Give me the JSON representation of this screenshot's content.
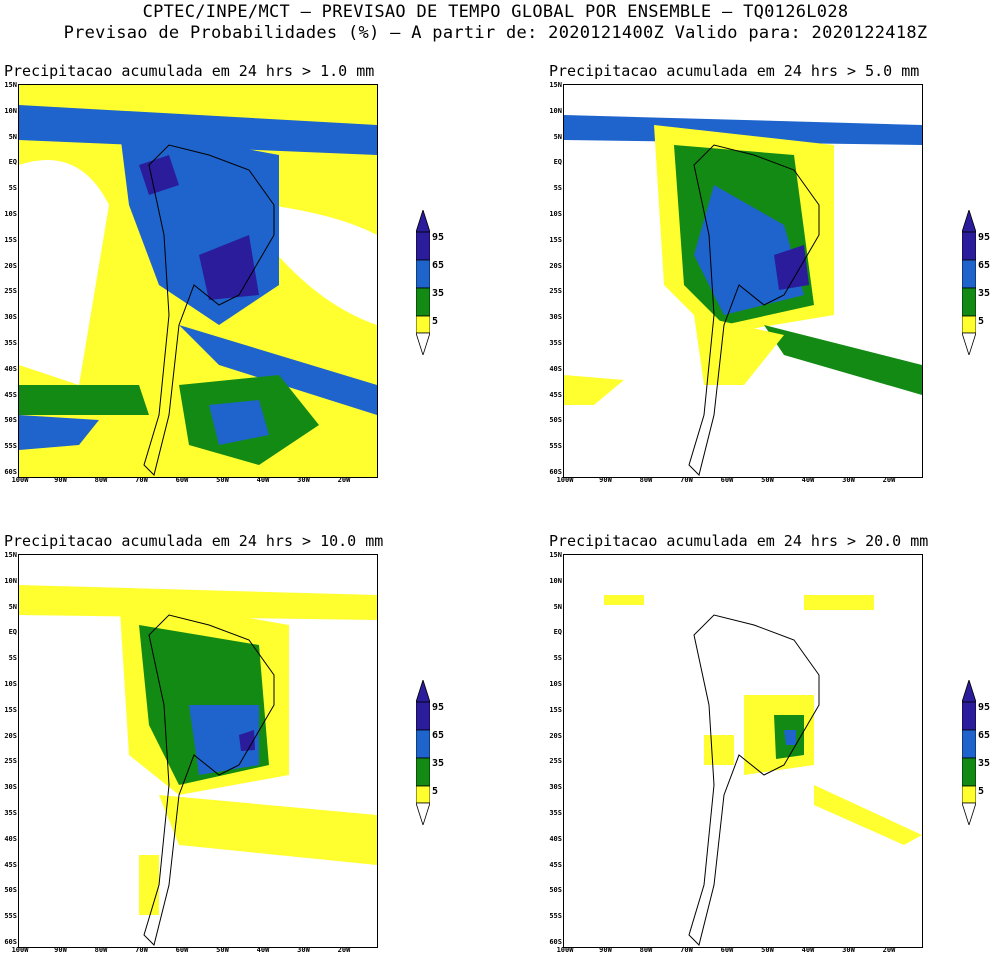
{
  "header": {
    "line1": "CPTEC/INPE/MCT – PREVISAO DE TEMPO GLOBAL POR ENSEMBLE – TQ0126L028",
    "line2": "Previsao de Probabilidades (%) –   A partir de: 2020121400Z  Valido para: 2020122418Z"
  },
  "axes": {
    "lat_labels": [
      "15N",
      "10N",
      "5N",
      "EQ",
      "5S",
      "10S",
      "15S",
      "20S",
      "25S",
      "30S",
      "35S",
      "40S",
      "45S",
      "50S",
      "55S",
      "60S"
    ],
    "lon_labels": [
      "100W",
      "90W",
      "80W",
      "70W",
      "60W",
      "50W",
      "40W",
      "30W",
      "20W"
    ]
  },
  "legend": {
    "levels": [
      "95",
      "65",
      "35",
      "5"
    ],
    "colors": {
      "p95": "#2a1c9a",
      "p65": "#1e64cc",
      "p35": "#138a13",
      "p5": "#ffff30",
      "none": "#ffffff"
    }
  },
  "panels": [
    {
      "title": "Precipitacao acumulada em 24 hrs > 1.0 mm"
    },
    {
      "title": "Precipitacao acumulada em 24 hrs > 5.0 mm"
    },
    {
      "title": "Precipitacao acumulada em 24 hrs > 10.0 mm"
    },
    {
      "title": "Precipitacao acumulada em 24 hrs > 20.0 mm"
    }
  ]
}
